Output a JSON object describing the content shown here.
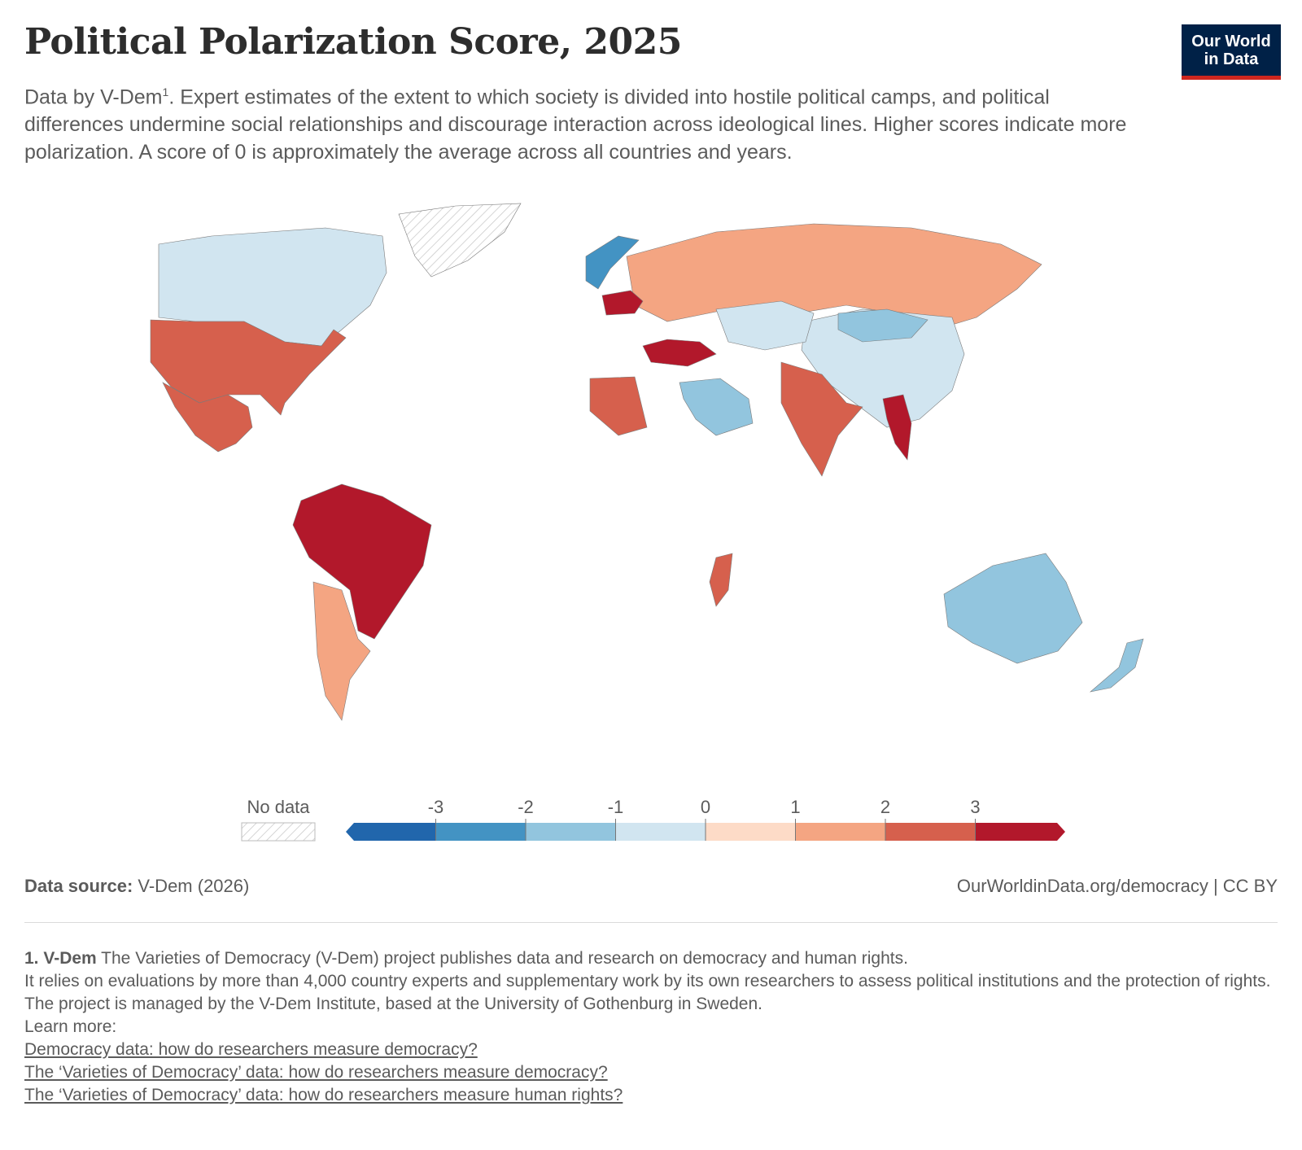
{
  "header": {
    "title": "Political Polarization Score, 2025",
    "subtitle_prefix": "Data by V-Dem",
    "subtitle_ref": "1",
    "subtitle_rest": ". Expert estimates of the extent to which society is divided into hostile political camps, and political differences undermine social relationships and discourage interaction across ideological lines. Higher scores indicate more polarization. A score of 0 is approximately the average across all countries and years.",
    "logo_line1": "Our World",
    "logo_line2": "in Data"
  },
  "legend": {
    "no_data_label": "No data",
    "ticks": [
      "-3",
      "-2",
      "-1",
      "0",
      "1",
      "2",
      "3"
    ],
    "bins": [
      {
        "from": null,
        "to": -3,
        "color": "#2166ac"
      },
      {
        "from": -3,
        "to": -2,
        "color": "#4393c3"
      },
      {
        "from": -2,
        "to": -1,
        "color": "#92c5de"
      },
      {
        "from": -1,
        "to": 0,
        "color": "#d1e5f0"
      },
      {
        "from": 0,
        "to": 1,
        "color": "#fddbc7"
      },
      {
        "from": 1,
        "to": 2,
        "color": "#f4a582"
      },
      {
        "from": 2,
        "to": 3,
        "color": "#d6604d"
      },
      {
        "from": 3,
        "to": null,
        "color": "#b2182b"
      }
    ]
  },
  "map": {
    "year": "2025",
    "regions": [
      {
        "name": "Canada",
        "color": "#d1e5f0"
      },
      {
        "name": "United States",
        "color": "#d6604d"
      },
      {
        "name": "Mexico",
        "color": "#d6604d"
      },
      {
        "name": "Greenland",
        "color": "nodata"
      },
      {
        "name": "Brazil",
        "color": "#b2182b"
      },
      {
        "name": "Argentina",
        "color": "#f4a582"
      },
      {
        "name": "Russia",
        "color": "#f4a582"
      },
      {
        "name": "China",
        "color": "#d1e5f0"
      },
      {
        "name": "India",
        "color": "#d6604d"
      },
      {
        "name": "Australia",
        "color": "#92c5de"
      },
      {
        "name": "Turkey",
        "color": "#b2182b"
      },
      {
        "name": "Poland",
        "color": "#b2182b"
      },
      {
        "name": "Myanmar",
        "color": "#b2182b"
      },
      {
        "name": "Madagascar",
        "color": "#d6604d"
      },
      {
        "name": "Saudi Arabia",
        "color": "#92c5de"
      },
      {
        "name": "Libya",
        "color": "#d6604d"
      },
      {
        "name": "Kazakhstan",
        "color": "#d1e5f0"
      },
      {
        "name": "Mongolia",
        "color": "#92c5de"
      },
      {
        "name": "Norway",
        "color": "#4393c3"
      },
      {
        "name": "New Zealand",
        "color": "#92c5de"
      }
    ]
  },
  "footer": {
    "source_label": "Data source:",
    "source_value": " V-Dem (2026)",
    "url": "OurWorldinData.org/democracy | CC BY",
    "note_ref": "1. V-Dem",
    "note_line1": " The Varieties of Democracy (V-Dem) project publishes data and research on democracy and human rights.",
    "note_line2": "It relies on evaluations by more than 4,000 country experts and supplementary work by its own researchers to assess political institutions and the protection of rights.",
    "note_line3": "The project is managed by the V-Dem Institute, based at the University of Gothenburg in Sweden.",
    "note_line4": "Learn more:",
    "links": [
      "Democracy data: how do researchers measure democracy?",
      "The ‘Varieties of Democracy’ data: how do researchers measure democracy?",
      "The ‘Varieties of Democracy’ data: how do researchers measure human rights?"
    ]
  }
}
